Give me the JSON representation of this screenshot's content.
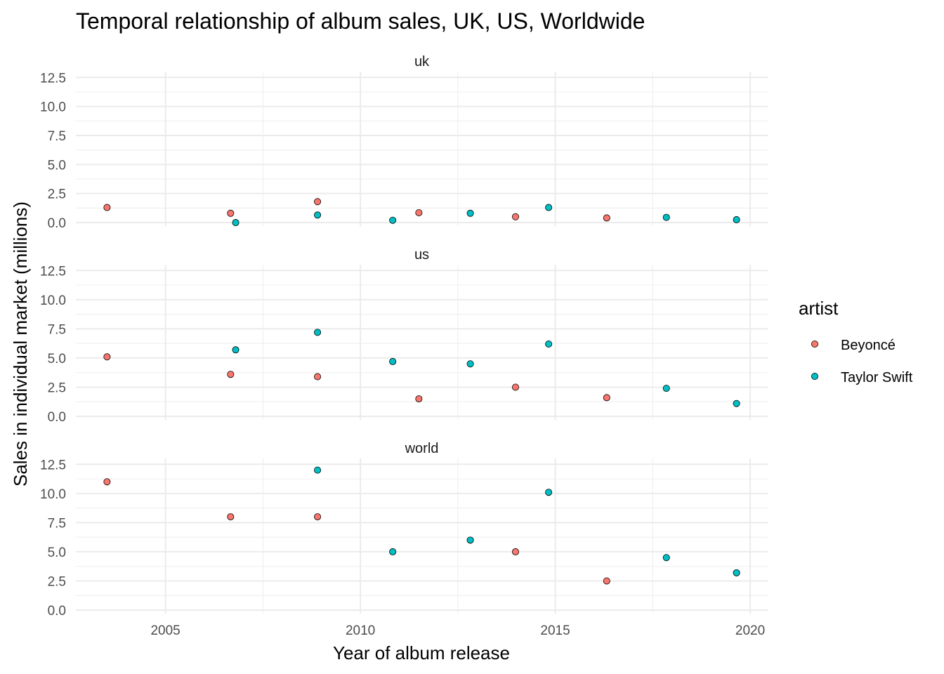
{
  "chart_data": {
    "type": "scatter",
    "title": "Temporal relationship of album sales, UK, US, Worldwide",
    "xlabel": "Year of album release",
    "ylabel": "Sales in individual market (millions)",
    "xlim": [
      2002.7,
      2020.45
    ],
    "ylim": [
      -0.3,
      13.0
    ],
    "x_ticks": [
      2005,
      2010,
      2015,
      2020
    ],
    "y_ticks": [
      0.0,
      2.5,
      5.0,
      7.5,
      10.0,
      12.5
    ],
    "y_tick_labels": [
      "0.0",
      "2.5",
      "5.0",
      "7.5",
      "10.0",
      "12.5"
    ],
    "grid": true,
    "legend": {
      "title": "artist",
      "placement": "right",
      "entries": [
        {
          "label": "Beyoncé",
          "color": "#F8766D"
        },
        {
          "label": "Taylor Swift",
          "color": "#00BFC4"
        }
      ]
    },
    "panels": [
      {
        "name": "uk",
        "series": [
          {
            "name": "Beyoncé",
            "x": [
              2003.5,
              2006.67,
              2008.9,
              2011.5,
              2013.98,
              2016.32
            ],
            "y": [
              1.3,
              0.8,
              1.8,
              0.85,
              0.5,
              0.4
            ]
          },
          {
            "name": "Taylor Swift",
            "x": [
              2006.8,
              2008.9,
              2010.83,
              2012.82,
              2014.83,
              2017.85,
              2019.65
            ],
            "y": [
              0.0,
              0.65,
              0.2,
              0.8,
              1.3,
              0.45,
              0.25
            ]
          }
        ]
      },
      {
        "name": "us",
        "series": [
          {
            "name": "Beyoncé",
            "x": [
              2003.5,
              2006.67,
              2008.9,
              2011.5,
              2013.98,
              2016.32
            ],
            "y": [
              5.1,
              3.6,
              3.4,
              1.5,
              2.5,
              1.6
            ]
          },
          {
            "name": "Taylor Swift",
            "x": [
              2006.8,
              2008.9,
              2010.83,
              2012.82,
              2014.83,
              2017.85,
              2019.65
            ],
            "y": [
              5.7,
              7.2,
              4.7,
              4.5,
              6.2,
              2.4,
              1.1
            ]
          }
        ]
      },
      {
        "name": "world",
        "series": [
          {
            "name": "Beyoncé",
            "x": [
              2003.5,
              2006.67,
              2008.9,
              2013.98,
              2016.32
            ],
            "y": [
              11.0,
              8.0,
              8.0,
              5.0,
              2.5
            ]
          },
          {
            "name": "Taylor Swift",
            "x": [
              2008.9,
              2010.83,
              2012.82,
              2014.83,
              2017.85,
              2019.65
            ],
            "y": [
              12.0,
              5.0,
              6.0,
              10.1,
              4.5,
              3.2
            ]
          }
        ]
      }
    ]
  }
}
